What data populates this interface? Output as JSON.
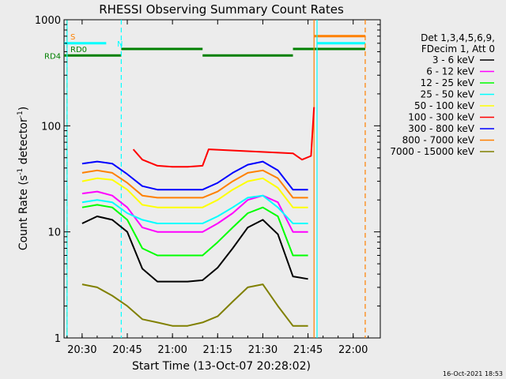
{
  "chart_data": {
    "type": "line",
    "title": "RHESSI Observing Summary Count Rates",
    "xlabel": "Start Time (13-Oct-07 20:28:02)",
    "ylabel_main": "Count Rate (s",
    "ylabel_sup1": "-1",
    "ylabel_mid": " detector",
    "ylabel_sup2": "-1",
    "ylabel_end": ")",
    "y_scale": "log",
    "xlim": [
      "20:24",
      "22:09"
    ],
    "ylim": [
      1,
      1000
    ],
    "x_ticks": [
      "20:30",
      "20:45",
      "21:00",
      "21:15",
      "21:30",
      "21:45",
      "22:00"
    ],
    "y_ticks": [
      {
        "value": 1,
        "label": "1"
      },
      {
        "value": 10,
        "label": "10"
      },
      {
        "value": 100,
        "label": "100"
      },
      {
        "value": 1000,
        "label": "1000"
      }
    ],
    "grid": false,
    "legend_position": "right",
    "legend_header": [
      "Det 1,3,4,5,6,9,",
      "FDecim 1, Att 0"
    ],
    "series": [
      {
        "name": "3 - 6 keV",
        "color": "#000000",
        "x": [
          "20:30",
          "20:35",
          "20:40",
          "20:45",
          "20:50",
          "20:55",
          "21:00",
          "21:05",
          "21:10",
          "21:15",
          "21:20",
          "21:25",
          "21:30",
          "21:35",
          "21:40",
          "21:45"
        ],
        "y": [
          12,
          14,
          13,
          10,
          4.5,
          3.4,
          3.4,
          3.4,
          3.5,
          4.6,
          7,
          11,
          13,
          9.5,
          3.8,
          3.6
        ]
      },
      {
        "name": "6 - 12 keV",
        "color": "#ff00ff",
        "x": [
          "20:30",
          "20:35",
          "20:40",
          "20:45",
          "20:50",
          "20:55",
          "21:00",
          "21:05",
          "21:10",
          "21:15",
          "21:20",
          "21:25",
          "21:30",
          "21:35",
          "21:40",
          "21:45"
        ],
        "y": [
          23,
          24,
          22,
          17,
          11,
          10,
          10,
          10,
          10,
          12,
          15,
          20,
          22,
          19,
          10,
          10
        ]
      },
      {
        "name": "12 - 25 keV",
        "color": "#00ff00",
        "x": [
          "20:30",
          "20:35",
          "20:40",
          "20:45",
          "20:50",
          "20:55",
          "21:00",
          "21:05",
          "21:10",
          "21:15",
          "21:20",
          "21:25",
          "21:30",
          "21:35",
          "21:40",
          "21:45"
        ],
        "y": [
          17,
          18,
          17,
          13,
          7,
          6,
          6,
          6,
          6,
          8,
          11,
          15,
          17,
          14,
          6,
          6
        ]
      },
      {
        "name": "25 - 50 keV",
        "color": "#00ffff",
        "x": [
          "20:30",
          "20:35",
          "20:40",
          "20:45",
          "20:50",
          "20:55",
          "21:00",
          "21:05",
          "21:10",
          "21:15",
          "21:20",
          "21:25",
          "21:30",
          "21:35",
          "21:40",
          "21:45"
        ],
        "y": [
          19,
          20,
          19,
          15,
          13,
          12,
          12,
          12,
          12,
          14,
          17,
          21,
          22,
          17,
          12,
          12
        ]
      },
      {
        "name": "50 - 100 keV",
        "color": "#ffff00",
        "x": [
          "20:30",
          "20:35",
          "20:40",
          "20:45",
          "20:50",
          "20:55",
          "21:00",
          "21:05",
          "21:10",
          "21:15",
          "21:20",
          "21:25",
          "21:30",
          "21:35",
          "21:40",
          "21:45"
        ],
        "y": [
          30,
          32,
          31,
          25,
          18,
          17,
          17,
          17,
          17,
          20,
          25,
          30,
          32,
          26,
          17,
          17
        ]
      },
      {
        "name": "100 - 300 keV",
        "color": "#ff0000",
        "x": [
          "20:47",
          "20:50",
          "20:55",
          "21:00",
          "21:05",
          "21:10",
          "21:12",
          "21:40",
          "21:43",
          "21:46",
          "21:47"
        ],
        "y": [
          60,
          48,
          42,
          41,
          41,
          42,
          60,
          55,
          48,
          52,
          150
        ]
      },
      {
        "name": "300 - 800 keV",
        "color": "#0000ff",
        "x": [
          "20:30",
          "20:35",
          "20:40",
          "20:45",
          "20:50",
          "20:55",
          "21:00",
          "21:05",
          "21:10",
          "21:15",
          "21:20",
          "21:25",
          "21:30",
          "21:35",
          "21:40",
          "21:45"
        ],
        "y": [
          44,
          46,
          44,
          35,
          27,
          25,
          25,
          25,
          25,
          29,
          36,
          43,
          46,
          38,
          25,
          25
        ]
      },
      {
        "name": "800 - 7000 keV",
        "color": "#ff8000",
        "x": [
          "20:30",
          "20:35",
          "20:40",
          "20:45",
          "20:50",
          "20:55",
          "21:00",
          "21:05",
          "21:10",
          "21:15",
          "21:20",
          "21:25",
          "21:30",
          "21:35",
          "21:40",
          "21:45"
        ],
        "y": [
          36,
          38,
          36,
          29,
          22,
          21,
          21,
          21,
          21,
          24,
          30,
          36,
          38,
          32,
          21,
          21
        ]
      },
      {
        "name": "7000 - 15000 keV",
        "color": "#808000",
        "x": [
          "20:30",
          "20:35",
          "20:40",
          "20:45",
          "20:50",
          "20:55",
          "21:00",
          "21:05",
          "21:10",
          "21:15",
          "21:20",
          "21:25",
          "21:30",
          "21:35",
          "21:40",
          "21:45"
        ],
        "y": [
          3.2,
          3.0,
          2.5,
          2.0,
          1.5,
          1.4,
          1.3,
          1.3,
          1.4,
          1.6,
          2.2,
          3.0,
          3.2,
          2.0,
          1.3,
          1.3
        ]
      }
    ],
    "flag_bars": [
      {
        "label": "S",
        "color": "#ff8000",
        "y": 700,
        "segments": [
          [
            "21:47",
            "22:04"
          ]
        ]
      },
      {
        "label": "N",
        "color": "#00ffff",
        "y": 600,
        "segments": [
          [
            "20:24",
            "20:38"
          ],
          [
            "21:48",
            "22:04"
          ]
        ]
      },
      {
        "label": "RD0",
        "color": "#008000",
        "y": 530,
        "segments": [
          [
            "20:43",
            "21:10"
          ],
          [
            "21:40",
            "22:04"
          ]
        ]
      },
      {
        "label": "RD4",
        "color": "#008000",
        "y": 460,
        "segments": [
          [
            "20:24",
            "20:43"
          ],
          [
            "21:10",
            "21:40"
          ]
        ]
      }
    ],
    "vertical_markers": [
      {
        "x": "20:25",
        "color": "#ff8000",
        "style": "dashed"
      },
      {
        "x": "20:25",
        "color": "#00ffff",
        "style": "solid"
      },
      {
        "x": "20:43",
        "color": "#00ffff",
        "style": "dashed"
      },
      {
        "x": "21:47",
        "color": "#ff8000",
        "style": "solid"
      },
      {
        "x": "21:48",
        "color": "#00ffff",
        "style": "solid"
      },
      {
        "x": "22:04",
        "color": "#ff8000",
        "style": "dashed"
      }
    ]
  },
  "footer_timestamp": "16-Oct-2021 18:53"
}
